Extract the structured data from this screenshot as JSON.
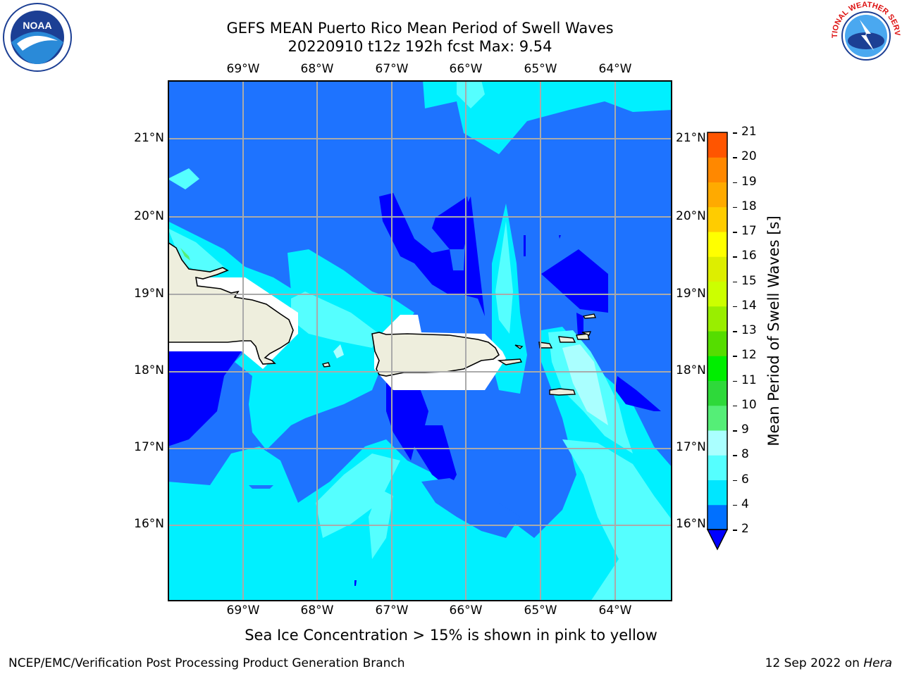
{
  "title": {
    "line1": "GEFS MEAN Puerto Rico Mean Period of Swell Waves",
    "line2": "20220910 t12z 192h fcst   Max: 9.54"
  },
  "map": {
    "lon_labels": [
      "69°W",
      "68°W",
      "67°W",
      "66°W",
      "65°W",
      "64°W"
    ],
    "lat_labels": [
      "21°N",
      "20°N",
      "19°N",
      "18°N",
      "17°N",
      "16°N"
    ],
    "extent": {
      "lon_min": -70.0,
      "lon_max": -63.3,
      "lat_min": 15.0,
      "lat_max": 21.75
    }
  },
  "colorbar": {
    "label": "Mean Period of Swell Waves [s]",
    "ticks": [
      "2",
      "4",
      "6",
      "8",
      "9",
      "10",
      "11",
      "12",
      "13",
      "14",
      "15",
      "16",
      "17",
      "18",
      "19",
      "20",
      "21"
    ],
    "colors": [
      "#0070ff",
      "#00e6ff",
      "#55ffff",
      "#aaffff",
      "#55ee77",
      "#2ed93a",
      "#00ee00",
      "#55dd00",
      "#99ee00",
      "#ccff00",
      "#ddee00",
      "#ffff00",
      "#ffcc00",
      "#ffaa00",
      "#ff8800",
      "#ff5500",
      "#ff2200",
      "#ff0000"
    ],
    "underflow_color": "#0000ff"
  },
  "colors": {
    "land": "#eeeedd",
    "ocean_low": "#0000ff",
    "ocean": "#1e73ff",
    "cyan": "#00f0ff",
    "cyan_light": "#55ffff",
    "cyan_pale": "#aaffff",
    "grid": "#aaaaaa"
  },
  "note": "Sea Ice Concentration > 15% is shown in pink to yellow",
  "footer": {
    "left": "NCEP/EMC/Verification Post Processing Product Generation Branch",
    "right_date": "12 Sep 2022 on ",
    "right_host": "Hera"
  },
  "logos": {
    "noaa_text": "NOAA",
    "nws_text": "NATIONAL WEATHER SERVICE"
  }
}
